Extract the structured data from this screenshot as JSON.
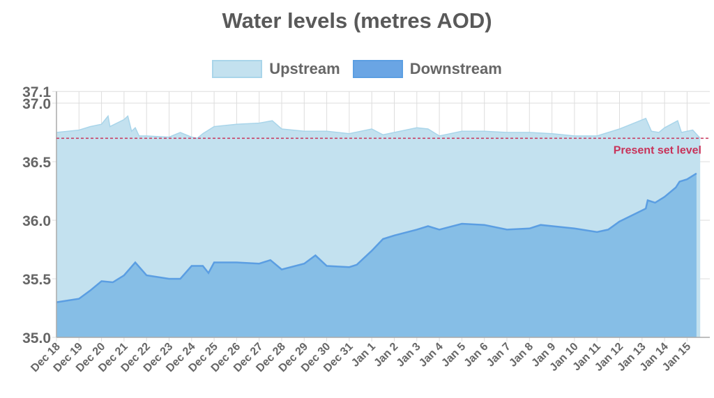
{
  "chart_data": {
    "type": "area",
    "title": "Water levels (metres AOD)",
    "xlabel": "",
    "ylabel": "",
    "ylim": [
      35.0,
      37.1
    ],
    "yticks": [
      "35.0",
      "35.5",
      "36.0",
      "36.5",
      "37.0",
      "37.1"
    ],
    "categories": [
      "Dec 18",
      "Dec 19",
      "Dec 20",
      "Dec 21",
      "Dec 22",
      "Dec 23",
      "Dec 24",
      "Dec 25",
      "Dec 26",
      "Dec 27",
      "Dec 28",
      "Dec 29",
      "Dec 30",
      "Dec 31",
      "Jan 1",
      "Jan 2",
      "Jan 3",
      "Jan 4",
      "Jan 5",
      "Jan 6",
      "Jan 7",
      "Jan 8",
      "Jan 9",
      "Jan 10",
      "Jan 11",
      "Jan 12",
      "Jan 13",
      "Jan 14",
      "Jan 15"
    ],
    "grid": true,
    "legend_position": "top",
    "reference_line": {
      "label": "Present set level",
      "value": 36.7,
      "color": "#c8335a"
    },
    "series": [
      {
        "name": "Upstream",
        "fill": "#c3e1ef",
        "stroke": "#a9d5ea",
        "points": [
          [
            "Dec 18 00:00",
            36.75
          ],
          [
            "Dec 19 00:00",
            36.77
          ],
          [
            "Dec 19 12:00",
            36.8
          ],
          [
            "Dec 20 00:00",
            36.82
          ],
          [
            "Dec 20 07:00",
            36.89
          ],
          [
            "Dec 20 09:00",
            36.8
          ],
          [
            "Dec 21 00:00",
            36.86
          ],
          [
            "Dec 21 04:00",
            36.89
          ],
          [
            "Dec 21 08:00",
            36.76
          ],
          [
            "Dec 21 12:00",
            36.79
          ],
          [
            "Dec 21 16:00",
            36.72
          ],
          [
            "Dec 22 00:00",
            36.72
          ],
          [
            "Dec 23 00:00",
            36.71
          ],
          [
            "Dec 23 12:00",
            36.75
          ],
          [
            "Dec 24 00:00",
            36.71
          ],
          [
            "Dec 24 06:00",
            36.7
          ],
          [
            "Dec 24 12:00",
            36.74
          ],
          [
            "Dec 25 00:00",
            36.8
          ],
          [
            "Dec 26 00:00",
            36.82
          ],
          [
            "Dec 27 00:00",
            36.83
          ],
          [
            "Dec 27 14:00",
            36.85
          ],
          [
            "Dec 28 00:00",
            36.78
          ],
          [
            "Dec 29 00:00",
            36.76
          ],
          [
            "Dec 30 00:00",
            36.76
          ],
          [
            "Dec 31 00:00",
            36.74
          ],
          [
            "Jan 1 00:00",
            36.78
          ],
          [
            "Jan 1 12:00",
            36.73
          ],
          [
            "Jan 2 00:00",
            36.75
          ],
          [
            "Jan 3 00:00",
            36.79
          ],
          [
            "Jan 3 12:00",
            36.78
          ],
          [
            "Jan 4 00:00",
            36.72
          ],
          [
            "Jan 5 00:00",
            36.76
          ],
          [
            "Jan 6 00:00",
            36.76
          ],
          [
            "Jan 7 00:00",
            36.75
          ],
          [
            "Jan 8 00:00",
            36.75
          ],
          [
            "Jan 9 00:00",
            36.74
          ],
          [
            "Jan 10 00:00",
            36.72
          ],
          [
            "Jan 11 00:00",
            36.72
          ],
          [
            "Jan 12 00:00",
            36.78
          ],
          [
            "Jan 13 04:00",
            36.87
          ],
          [
            "Jan 13 10:00",
            36.76
          ],
          [
            "Jan 13 18:00",
            36.75
          ],
          [
            "Jan 14 00:00",
            36.79
          ],
          [
            "Jan 14 14:00",
            36.85
          ],
          [
            "Jan 14 18:00",
            36.75
          ],
          [
            "Jan 15 06:00",
            36.77
          ],
          [
            "Jan 15 14:00",
            36.7
          ]
        ]
      },
      {
        "name": "Downstream",
        "fill": "#86bee6",
        "stroke": "#5b9ee2",
        "points": [
          [
            "Dec 18 00:00",
            35.3
          ],
          [
            "Dec 19 00:00",
            35.33
          ],
          [
            "Dec 19 12:00",
            35.4
          ],
          [
            "Dec 20 00:00",
            35.48
          ],
          [
            "Dec 20 12:00",
            35.47
          ],
          [
            "Dec 21 00:00",
            35.53
          ],
          [
            "Dec 21 12:00",
            35.64
          ],
          [
            "Dec 22 00:00",
            35.53
          ],
          [
            "Dec 23 00:00",
            35.5
          ],
          [
            "Dec 23 12:00",
            35.5
          ],
          [
            "Dec 24 00:00",
            35.61
          ],
          [
            "Dec 24 12:00",
            35.61
          ],
          [
            "Dec 24 18:00",
            35.55
          ],
          [
            "Dec 25 00:00",
            35.64
          ],
          [
            "Dec 26 00:00",
            35.64
          ],
          [
            "Dec 27 00:00",
            35.63
          ],
          [
            "Dec 27 12:00",
            35.66
          ],
          [
            "Dec 28 00:00",
            35.58
          ],
          [
            "Dec 29 00:00",
            35.63
          ],
          [
            "Dec 29 12:00",
            35.7
          ],
          [
            "Dec 30 00:00",
            35.61
          ],
          [
            "Dec 31 00:00",
            35.6
          ],
          [
            "Dec 31 08:00",
            35.62
          ],
          [
            "Jan 1 00:00",
            35.74
          ],
          [
            "Jan 1 12:00",
            35.84
          ],
          [
            "Jan 2 00:00",
            35.87
          ],
          [
            "Jan 3 00:00",
            35.92
          ],
          [
            "Jan 3 12:00",
            35.95
          ],
          [
            "Jan 4 00:00",
            35.92
          ],
          [
            "Jan 5 00:00",
            35.97
          ],
          [
            "Jan 6 00:00",
            35.96
          ],
          [
            "Jan 7 00:00",
            35.92
          ],
          [
            "Jan 8 00:00",
            35.93
          ],
          [
            "Jan 8 12:00",
            35.96
          ],
          [
            "Jan 9 00:00",
            35.95
          ],
          [
            "Jan 10 00:00",
            35.93
          ],
          [
            "Jan 11 00:00",
            35.9
          ],
          [
            "Jan 11 12:00",
            35.92
          ],
          [
            "Jan 12 00:00",
            35.99
          ],
          [
            "Jan 12 18:00",
            36.06
          ],
          [
            "Jan 13 04:00",
            36.1
          ],
          [
            "Jan 13 06:00",
            36.17
          ],
          [
            "Jan 13 14:00",
            36.15
          ],
          [
            "Jan 14 00:00",
            36.2
          ],
          [
            "Jan 14 12:00",
            36.28
          ],
          [
            "Jan 14 16:00",
            36.33
          ],
          [
            "Jan 15 00:00",
            36.35
          ],
          [
            "Jan 15 10:00",
            36.4
          ]
        ]
      }
    ]
  }
}
